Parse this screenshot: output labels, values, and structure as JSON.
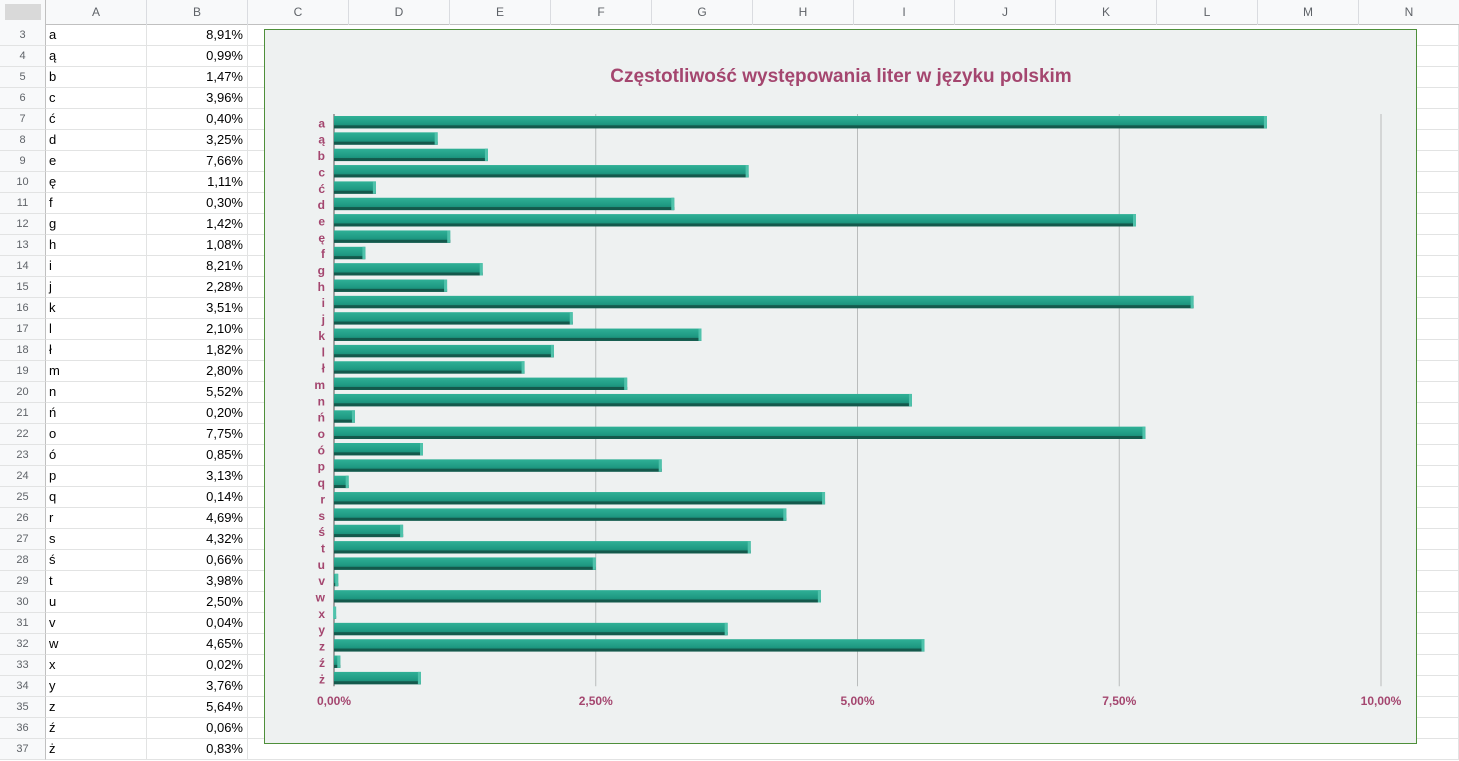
{
  "sheet": {
    "columns": [
      "A",
      "B",
      "C",
      "D",
      "E",
      "F",
      "G",
      "H",
      "I",
      "J",
      "K",
      "L",
      "M",
      "N"
    ],
    "rows": [
      {
        "num": "3",
        "letter": "a",
        "value": "8,91%"
      },
      {
        "num": "4",
        "letter": "ą",
        "value": "0,99%"
      },
      {
        "num": "5",
        "letter": "b",
        "value": "1,47%"
      },
      {
        "num": "6",
        "letter": "c",
        "value": "3,96%"
      },
      {
        "num": "7",
        "letter": "ć",
        "value": "0,40%"
      },
      {
        "num": "8",
        "letter": "d",
        "value": "3,25%"
      },
      {
        "num": "9",
        "letter": "e",
        "value": "7,66%"
      },
      {
        "num": "10",
        "letter": "ę",
        "value": "1,11%"
      },
      {
        "num": "11",
        "letter": "f",
        "value": "0,30%"
      },
      {
        "num": "12",
        "letter": "g",
        "value": "1,42%"
      },
      {
        "num": "13",
        "letter": "h",
        "value": "1,08%"
      },
      {
        "num": "14",
        "letter": "i",
        "value": "8,21%"
      },
      {
        "num": "15",
        "letter": "j",
        "value": "2,28%"
      },
      {
        "num": "16",
        "letter": "k",
        "value": "3,51%"
      },
      {
        "num": "17",
        "letter": "l",
        "value": "2,10%"
      },
      {
        "num": "18",
        "letter": "ł",
        "value": "1,82%"
      },
      {
        "num": "19",
        "letter": "m",
        "value": "2,80%"
      },
      {
        "num": "20",
        "letter": "n",
        "value": "5,52%"
      },
      {
        "num": "21",
        "letter": "ń",
        "value": "0,20%"
      },
      {
        "num": "22",
        "letter": "o",
        "value": "7,75%"
      },
      {
        "num": "23",
        "letter": "ó",
        "value": "0,85%"
      },
      {
        "num": "24",
        "letter": "p",
        "value": "3,13%"
      },
      {
        "num": "25",
        "letter": "q",
        "value": "0,14%"
      },
      {
        "num": "26",
        "letter": "r",
        "value": "4,69%"
      },
      {
        "num": "27",
        "letter": "s",
        "value": "4,32%"
      },
      {
        "num": "28",
        "letter": "ś",
        "value": "0,66%"
      },
      {
        "num": "29",
        "letter": "t",
        "value": "3,98%"
      },
      {
        "num": "30",
        "letter": "u",
        "value": "2,50%"
      },
      {
        "num": "31",
        "letter": "v",
        "value": "0,04%"
      },
      {
        "num": "32",
        "letter": "w",
        "value": "4,65%"
      },
      {
        "num": "33",
        "letter": "x",
        "value": "0,02%"
      },
      {
        "num": "34",
        "letter": "y",
        "value": "3,76%"
      },
      {
        "num": "35",
        "letter": "z",
        "value": "5,64%"
      },
      {
        "num": "36",
        "letter": "ź",
        "value": "0,06%"
      },
      {
        "num": "37",
        "letter": "ż",
        "value": "0,83%"
      }
    ]
  },
  "chart_data": {
    "type": "bar",
    "orientation": "horizontal",
    "title": "Częstotliwość występowania liter w języku polskim",
    "categories": [
      "a",
      "ą",
      "b",
      "c",
      "ć",
      "d",
      "e",
      "ę",
      "f",
      "g",
      "h",
      "i",
      "j",
      "k",
      "l",
      "ł",
      "m",
      "n",
      "ń",
      "o",
      "ó",
      "p",
      "q",
      "r",
      "s",
      "ś",
      "t",
      "u",
      "v",
      "w",
      "x",
      "y",
      "z",
      "ź",
      "ż"
    ],
    "values": [
      8.91,
      0.99,
      1.47,
      3.96,
      0.4,
      3.25,
      7.66,
      1.11,
      0.3,
      1.42,
      1.08,
      8.21,
      2.28,
      3.51,
      2.1,
      1.82,
      2.8,
      5.52,
      0.2,
      7.75,
      0.85,
      3.13,
      0.14,
      4.69,
      4.32,
      0.66,
      3.98,
      2.5,
      0.04,
      4.65,
      0.02,
      3.76,
      5.64,
      0.06,
      0.83
    ],
    "xlim": [
      0,
      10
    ],
    "xticks": [
      0,
      2.5,
      5,
      7.5,
      10
    ],
    "xtick_labels": [
      "0,00%",
      "2,50%",
      "5,00%",
      "7,50%",
      "10,00%"
    ],
    "grid": true,
    "colors": {
      "bar": "#1f9a83",
      "bar_dark": "#14594c",
      "label": "#a4466f",
      "background": "#eef1f1",
      "border": "#4e8f3a",
      "grid": "#b9bcbc"
    }
  }
}
